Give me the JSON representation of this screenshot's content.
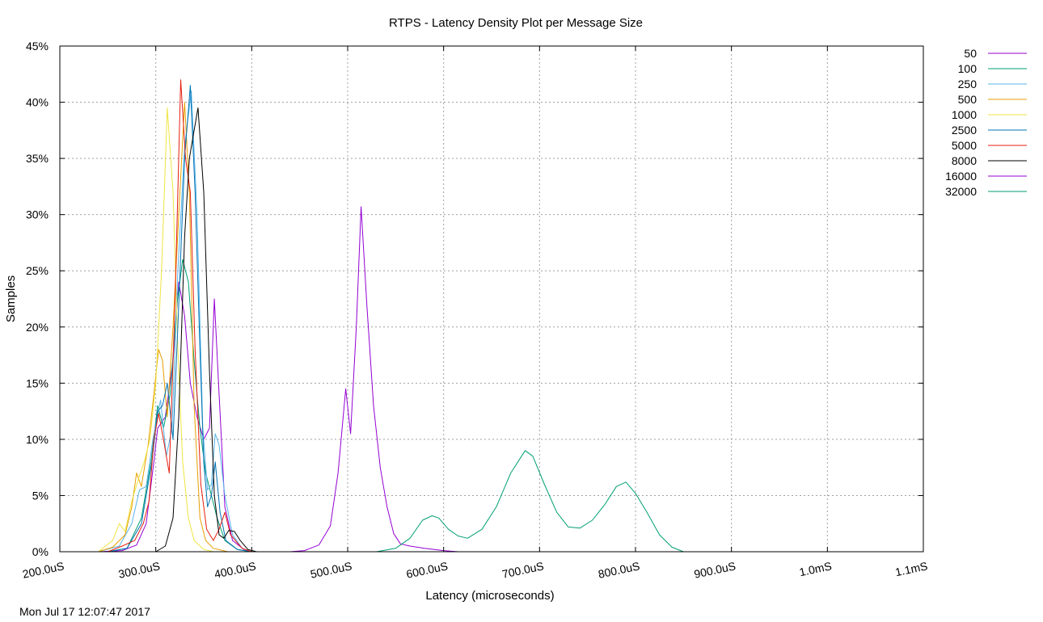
{
  "chart_data": {
    "type": "line",
    "title": "RTPS - Latency Density Plot per Message Size",
    "xlabel": "Latency (microseconds)",
    "ylabel": "Samples",
    "xlim": [
      200,
      1100
    ],
    "ylim": [
      0,
      45
    ],
    "x_ticks": [
      {
        "value": 200,
        "label": "200.0uS"
      },
      {
        "value": 300,
        "label": "300.0uS"
      },
      {
        "value": 400,
        "label": "400.0uS"
      },
      {
        "value": 500,
        "label": "500.0uS"
      },
      {
        "value": 600,
        "label": "600.0uS"
      },
      {
        "value": 700,
        "label": "700.0uS"
      },
      {
        "value": 800,
        "label": "800.0uS"
      },
      {
        "value": 900,
        "label": "900.0uS"
      },
      {
        "value": 1000,
        "label": "1.0mS"
      },
      {
        "value": 1100,
        "label": "1.1mS"
      }
    ],
    "y_ticks": [
      {
        "value": 0,
        "label": "0%"
      },
      {
        "value": 5,
        "label": "5%"
      },
      {
        "value": 10,
        "label": "10%"
      },
      {
        "value": 15,
        "label": "15%"
      },
      {
        "value": 20,
        "label": "20%"
      },
      {
        "value": 25,
        "label": "25%"
      },
      {
        "value": 30,
        "label": "30%"
      },
      {
        "value": 35,
        "label": "35%"
      },
      {
        "value": 40,
        "label": "40%"
      },
      {
        "value": 45,
        "label": "45%"
      }
    ],
    "grid": true,
    "legend_position": "right",
    "series": [
      {
        "name": "50",
        "color": "#9400d3",
        "points": [
          [
            240,
            0
          ],
          [
            265,
            0.1
          ],
          [
            280,
            0.6
          ],
          [
            290,
            2.5
          ],
          [
            298,
            8
          ],
          [
            302,
            11
          ],
          [
            310,
            12
          ],
          [
            318,
            17
          ],
          [
            324,
            24
          ],
          [
            330,
            21
          ],
          [
            336,
            15
          ],
          [
            343,
            12
          ],
          [
            350,
            10
          ],
          [
            356,
            11
          ],
          [
            361,
            22.5
          ],
          [
            366,
            14
          ],
          [
            372,
            4
          ],
          [
            380,
            1
          ],
          [
            392,
            0.2
          ],
          [
            400,
            0
          ]
        ]
      },
      {
        "name": "100",
        "color": "#009e73",
        "points": [
          [
            250,
            0
          ],
          [
            270,
            0.3
          ],
          [
            285,
            3
          ],
          [
            295,
            8
          ],
          [
            302,
            13
          ],
          [
            308,
            11
          ],
          [
            315,
            14
          ],
          [
            322,
            22
          ],
          [
            328,
            26
          ],
          [
            334,
            24
          ],
          [
            340,
            17
          ],
          [
            346,
            11
          ],
          [
            352,
            7
          ],
          [
            358,
            5
          ],
          [
            364,
            3
          ],
          [
            372,
            1
          ],
          [
            385,
            0.2
          ],
          [
            400,
            0
          ]
        ]
      },
      {
        "name": "250",
        "color": "#56b4e9",
        "points": [
          [
            240,
            0
          ],
          [
            262,
            0.5
          ],
          [
            275,
            2.5
          ],
          [
            283,
            5.5
          ],
          [
            290,
            5.8
          ],
          [
            297,
            10
          ],
          [
            305,
            13.5
          ],
          [
            311,
            8.5
          ],
          [
            317,
            11
          ],
          [
            323,
            25
          ],
          [
            330,
            36
          ],
          [
            337,
            41
          ],
          [
            343,
            30
          ],
          [
            349,
            11
          ],
          [
            354,
            5.5
          ],
          [
            358,
            6
          ],
          [
            362,
            10.5
          ],
          [
            366,
            9.5
          ],
          [
            372,
            5
          ],
          [
            380,
            1.5
          ],
          [
            390,
            0.3
          ],
          [
            400,
            0
          ]
        ]
      },
      {
        "name": "500",
        "color": "#e69f00",
        "points": [
          [
            240,
            0
          ],
          [
            255,
            0.4
          ],
          [
            268,
            1.5
          ],
          [
            275,
            4
          ],
          [
            280,
            7
          ],
          [
            285,
            5.8
          ],
          [
            292,
            9.5
          ],
          [
            298,
            14
          ],
          [
            303,
            18
          ],
          [
            307,
            17
          ],
          [
            312,
            12
          ],
          [
            318,
            20
          ],
          [
            324,
            30
          ],
          [
            330,
            40
          ],
          [
            335,
            32
          ],
          [
            340,
            13
          ],
          [
            346,
            3
          ],
          [
            352,
            1
          ],
          [
            360,
            0.3
          ],
          [
            375,
            0
          ]
        ]
      },
      {
        "name": "1000",
        "color": "#f0e442",
        "points": [
          [
            240,
            0
          ],
          [
            255,
            1
          ],
          [
            262,
            2.5
          ],
          [
            268,
            1.8
          ],
          [
            275,
            4.5
          ],
          [
            282,
            6.5
          ],
          [
            288,
            8
          ],
          [
            294,
            10
          ],
          [
            300,
            15
          ],
          [
            306,
            25
          ],
          [
            312,
            39.5
          ],
          [
            318,
            32
          ],
          [
            323,
            18
          ],
          [
            328,
            8
          ],
          [
            334,
            3
          ],
          [
            340,
            1
          ],
          [
            350,
            0.2
          ],
          [
            360,
            0
          ]
        ]
      },
      {
        "name": "2500",
        "color": "#0072b2",
        "points": [
          [
            250,
            0
          ],
          [
            270,
            0.3
          ],
          [
            285,
            2.5
          ],
          [
            296,
            8
          ],
          [
            302,
            12.5
          ],
          [
            307,
            13
          ],
          [
            312,
            15
          ],
          [
            318,
            10
          ],
          [
            324,
            22
          ],
          [
            330,
            35
          ],
          [
            336,
            41.5
          ],
          [
            341,
            32
          ],
          [
            346,
            18
          ],
          [
            350,
            8
          ],
          [
            354,
            4
          ],
          [
            358,
            5
          ],
          [
            362,
            8
          ],
          [
            367,
            3.5
          ],
          [
            373,
            1
          ],
          [
            385,
            0.2
          ],
          [
            400,
            0
          ]
        ]
      },
      {
        "name": "5000",
        "color": "#e51e10",
        "points": [
          [
            250,
            0
          ],
          [
            265,
            0.5
          ],
          [
            278,
            1
          ],
          [
            287,
            2.5
          ],
          [
            293,
            4.5
          ],
          [
            298,
            10
          ],
          [
            303,
            12.3
          ],
          [
            308,
            10
          ],
          [
            314,
            7
          ],
          [
            320,
            22
          ],
          [
            326,
            42
          ],
          [
            331,
            35
          ],
          [
            336,
            32
          ],
          [
            341,
            18
          ],
          [
            347,
            6
          ],
          [
            353,
            2
          ],
          [
            360,
            1
          ],
          [
            366,
            2
          ],
          [
            372,
            3.5
          ],
          [
            378,
            1.5
          ],
          [
            390,
            0.3
          ],
          [
            400,
            0
          ]
        ]
      },
      {
        "name": "8000",
        "color": "#000000",
        "points": [
          [
            300,
            0
          ],
          [
            310,
            0.5
          ],
          [
            318,
            3
          ],
          [
            324,
            12
          ],
          [
            330,
            28
          ],
          [
            335,
            35
          ],
          [
            339,
            37
          ],
          [
            344,
            39.5
          ],
          [
            350,
            32
          ],
          [
            356,
            16
          ],
          [
            361,
            5
          ],
          [
            366,
            1.5
          ],
          [
            371,
            1.2
          ],
          [
            376,
            1.9
          ],
          [
            382,
            1.8
          ],
          [
            388,
            1
          ],
          [
            396,
            0.2
          ],
          [
            405,
            0
          ]
        ]
      },
      {
        "name": "16000",
        "color": "#9400d3",
        "points": [
          [
            440,
            0
          ],
          [
            455,
            0.1
          ],
          [
            470,
            0.6
          ],
          [
            482,
            2.3
          ],
          [
            490,
            7
          ],
          [
            498,
            14.5
          ],
          [
            503,
            10.5
          ],
          [
            509,
            20
          ],
          [
            514,
            30.7
          ],
          [
            520,
            22
          ],
          [
            527,
            13
          ],
          [
            534,
            7.5
          ],
          [
            541,
            4
          ],
          [
            548,
            1.6
          ],
          [
            555,
            0.7
          ],
          [
            565,
            0.5
          ],
          [
            580,
            0.3
          ],
          [
            600,
            0.1
          ],
          [
            615,
            0
          ]
        ]
      },
      {
        "name": "32000",
        "color": "#009e73",
        "points": [
          [
            530,
            0
          ],
          [
            550,
            0.3
          ],
          [
            565,
            1.2
          ],
          [
            578,
            2.8
          ],
          [
            588,
            3.2
          ],
          [
            595,
            3
          ],
          [
            605,
            2
          ],
          [
            615,
            1.4
          ],
          [
            625,
            1.2
          ],
          [
            640,
            2
          ],
          [
            655,
            4
          ],
          [
            670,
            7
          ],
          [
            685,
            9
          ],
          [
            693,
            8.5
          ],
          [
            705,
            6
          ],
          [
            718,
            3.5
          ],
          [
            730,
            2.2
          ],
          [
            742,
            2.1
          ],
          [
            755,
            2.8
          ],
          [
            768,
            4.2
          ],
          [
            780,
            5.8
          ],
          [
            790,
            6.2
          ],
          [
            800,
            5.2
          ],
          [
            812,
            3.5
          ],
          [
            825,
            1.5
          ],
          [
            838,
            0.4
          ],
          [
            850,
            0
          ]
        ]
      }
    ]
  },
  "footer": {
    "timestamp": "Mon Jul 17 12:07:47 2017"
  }
}
